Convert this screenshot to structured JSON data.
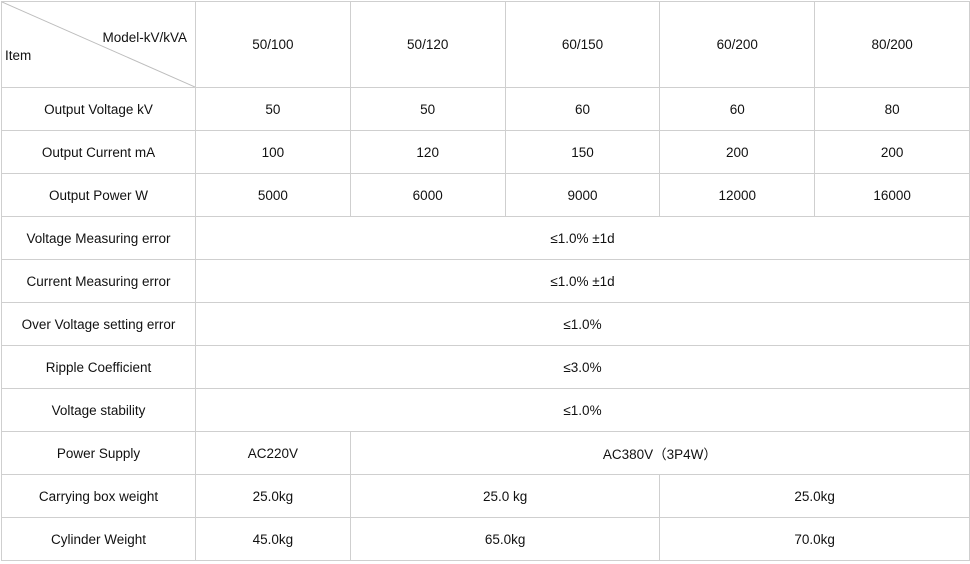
{
  "header": {
    "model_label": "Model-kV/kVA",
    "item_label": "Item",
    "models": [
      "50/100",
      "50/120",
      "60/150",
      "60/200",
      "80/200"
    ]
  },
  "rows": {
    "output_voltage": {
      "label": "Output Voltage kV",
      "values": [
        "50",
        "50",
        "60",
        "60",
        "80"
      ]
    },
    "output_current": {
      "label": "Output Current mA",
      "values": [
        "100",
        "120",
        "150",
        "200",
        "200"
      ]
    },
    "output_power": {
      "label": "Output Power W",
      "values": [
        "5000",
        "6000",
        "9000",
        "12000",
        "16000"
      ]
    },
    "voltage_error": {
      "label": "Voltage Measuring error",
      "value": "≤1.0% ±1d"
    },
    "current_error": {
      "label": "Current Measuring error",
      "value": "≤1.0% ±1d"
    },
    "over_voltage_error": {
      "label": "Over Voltage setting error",
      "value": "≤1.0%"
    },
    "ripple": {
      "label": "Ripple Coefficient",
      "value": "≤3.0%"
    },
    "voltage_stability": {
      "label": "Voltage stability",
      "value": "≤1.0%"
    },
    "power_supply": {
      "label": "Power Supply",
      "values": [
        "AC220V",
        "AC380V（3P4W）"
      ]
    },
    "carrying_box_weight": {
      "label": "Carrying box weight",
      "values": [
        "25.0kg",
        "25.0 kg",
        "25.0kg"
      ]
    },
    "cylinder_weight": {
      "label": "Cylinder Weight",
      "values": [
        "45.0kg",
        "65.0kg",
        "70.0kg"
      ]
    }
  }
}
